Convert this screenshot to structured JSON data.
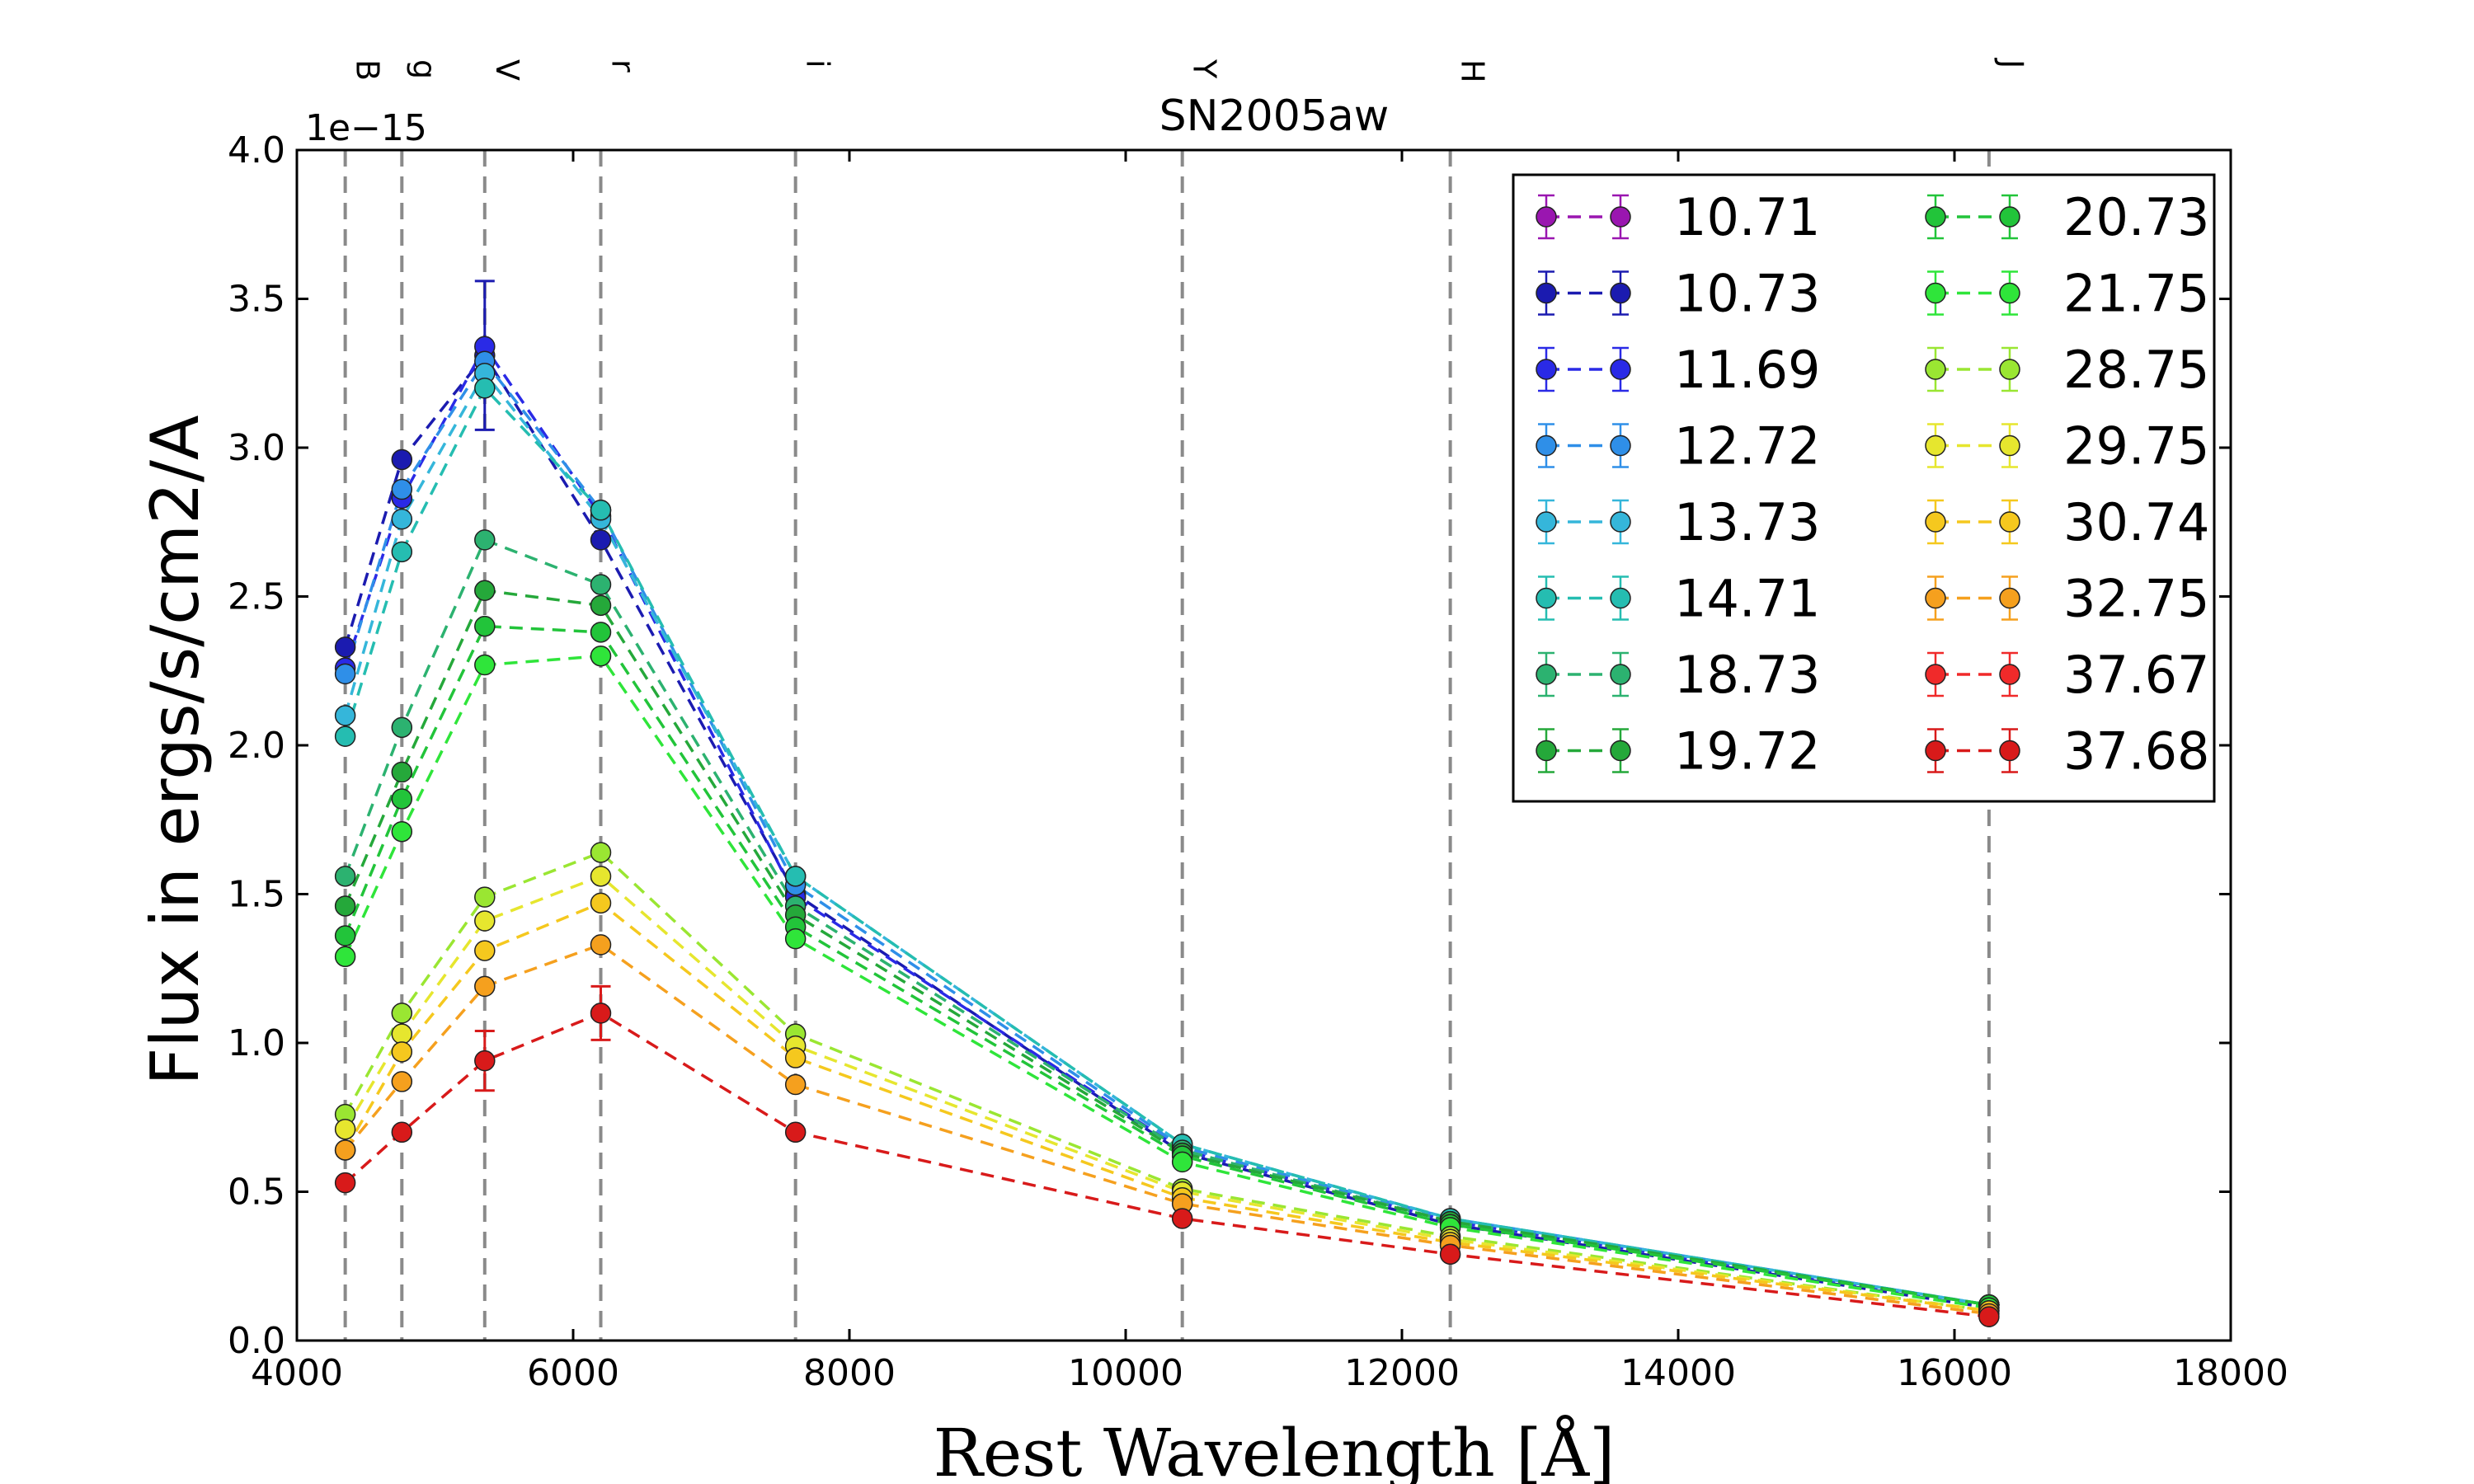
{
  "chart_data": {
    "type": "line",
    "title": "SN2005aw",
    "xlabel": "Rest Wavelength [Å]",
    "ylabel": "Flux in ergs/s/cm2/A",
    "y_offset_label": "1e−15",
    "xlim": [
      4000,
      18000
    ],
    "ylim": [
      0.0,
      4.0
    ],
    "x_ticks": [
      4000,
      6000,
      8000,
      10000,
      12000,
      14000,
      16000,
      18000
    ],
    "y_ticks": [
      "0.0",
      "0.5",
      "1.0",
      "1.5",
      "2.0",
      "2.5",
      "3.0",
      "3.5",
      "4.0"
    ],
    "y_tick_values": [
      0.0,
      0.5,
      1.0,
      1.5,
      2.0,
      2.5,
      3.0,
      3.5,
      4.0
    ],
    "grid": false,
    "legend_position": "top-right",
    "legend_columns": 2,
    "bands": [
      {
        "label": "B",
        "x": 4350
      },
      {
        "label": "g",
        "x": 4760
      },
      {
        "label": "V",
        "x": 5360
      },
      {
        "label": "r",
        "x": 6200
      },
      {
        "label": "i",
        "x": 7610
      },
      {
        "label": "Y",
        "x": 10410
      },
      {
        "label": "H",
        "x": 12350
      },
      {
        "label": "J",
        "x": 16250
      }
    ],
    "series": [
      {
        "name": "10.71",
        "color": "#9a16b0",
        "x": [],
        "values": []
      },
      {
        "name": "10.73",
        "color": "#1b1bb0",
        "x": [
          4350,
          4760,
          5360,
          6200,
          7610,
          10410,
          12350,
          16250
        ],
        "values": [
          2.33,
          2.96,
          3.31,
          2.69,
          1.5,
          0.63,
          0.39,
          0.11
        ]
      },
      {
        "name": "11.69",
        "color": "#2a2ae6",
        "x": [
          4350,
          4760,
          5360,
          6200,
          7610,
          10410,
          12350,
          16250
        ],
        "values": [
          2.26,
          2.83,
          3.34,
          2.77,
          1.49,
          0.64,
          0.4,
          0.12
        ]
      },
      {
        "name": "12.72",
        "color": "#2f8fe8",
        "x": [
          4350,
          4760,
          5360,
          6200,
          7610,
          10410,
          12350,
          16250
        ],
        "values": [
          2.24,
          2.86,
          3.29,
          2.79,
          1.53,
          0.65,
          0.41,
          0.12
        ]
      },
      {
        "name": "13.73",
        "color": "#35b6da",
        "x": [
          4350,
          4760,
          5360,
          6200,
          7610,
          10410,
          12350,
          16250
        ],
        "values": [
          2.1,
          2.76,
          3.25,
          2.76,
          1.56,
          0.66,
          0.41,
          0.12
        ]
      },
      {
        "name": "14.71",
        "color": "#25bdb1",
        "x": [
          4350,
          4760,
          5360,
          6200,
          7610,
          10410,
          12350,
          16250
        ],
        "values": [
          2.03,
          2.65,
          3.2,
          2.79,
          1.56,
          0.66,
          0.41,
          0.12
        ]
      },
      {
        "name": "18.73",
        "color": "#2cb270",
        "x": [
          4350,
          4760,
          5360,
          6200,
          7610,
          10410,
          12350,
          16250
        ],
        "values": [
          1.56,
          2.06,
          2.69,
          2.54,
          1.46,
          0.64,
          0.4,
          0.12
        ]
      },
      {
        "name": "19.72",
        "color": "#25a83a",
        "x": [
          4350,
          4760,
          5360,
          6200,
          7610,
          10410,
          12350,
          16250
        ],
        "values": [
          1.46,
          1.91,
          2.52,
          2.47,
          1.43,
          0.63,
          0.4,
          0.12
        ]
      },
      {
        "name": "20.73",
        "color": "#22c43a",
        "x": [
          4350,
          4760,
          5360,
          6200,
          7610,
          10410,
          12350,
          16250
        ],
        "values": [
          1.36,
          1.82,
          2.4,
          2.38,
          1.39,
          0.62,
          0.39,
          0.12
        ]
      },
      {
        "name": "21.75",
        "color": "#2fe53a",
        "x": [
          4350,
          4760,
          5360,
          6200,
          7610,
          10410,
          12350,
          16250
        ],
        "values": [
          1.29,
          1.71,
          2.27,
          2.3,
          1.35,
          0.6,
          0.38,
          0.11
        ]
      },
      {
        "name": "28.75",
        "color": "#9ae632",
        "x": [
          4350,
          4760,
          5360,
          6200,
          7610,
          10410,
          12350,
          16250
        ],
        "values": [
          0.76,
          1.1,
          1.49,
          1.64,
          1.03,
          0.51,
          0.35,
          0.1
        ]
      },
      {
        "name": "29.75",
        "color": "#e6e62e",
        "x": [
          4350,
          4760,
          5360,
          6200,
          7610,
          10410,
          12350,
          16250
        ],
        "values": [
          0.71,
          1.03,
          1.41,
          1.56,
          0.99,
          0.5,
          0.34,
          0.1
        ]
      },
      {
        "name": "30.74",
        "color": "#f5c81e",
        "x": [
          4350,
          4760,
          5360,
          6200,
          7610,
          10410,
          12350,
          16250
        ],
        "values": [
          0.64,
          0.97,
          1.31,
          1.47,
          0.95,
          0.48,
          0.33,
          0.1
        ]
      },
      {
        "name": "32.75",
        "color": "#f5a01e",
        "x": [
          4350,
          4760,
          5360,
          6200,
          7610,
          10410,
          12350,
          16250
        ],
        "values": [
          0.64,
          0.87,
          1.19,
          1.33,
          0.86,
          0.46,
          0.32,
          0.09
        ]
      },
      {
        "name": "37.67",
        "color": "#f02a2a",
        "x": [],
        "values": []
      },
      {
        "name": "37.68",
        "color": "#d81a1a",
        "x": [
          4350,
          4760,
          5360,
          6200,
          7610,
          10410,
          12350,
          16250
        ],
        "values": [
          0.53,
          0.7,
          0.94,
          1.1,
          0.7,
          0.41,
          0.29,
          0.08
        ]
      }
    ],
    "error_bars": [
      {
        "series": "10.73",
        "x": 5360,
        "y": 3.31,
        "err": 0.25
      },
      {
        "series": "37.68",
        "x": 5360,
        "y": 0.94,
        "err": 0.1
      },
      {
        "series": "37.68",
        "x": 6200,
        "y": 1.1,
        "err": 0.09
      }
    ]
  }
}
